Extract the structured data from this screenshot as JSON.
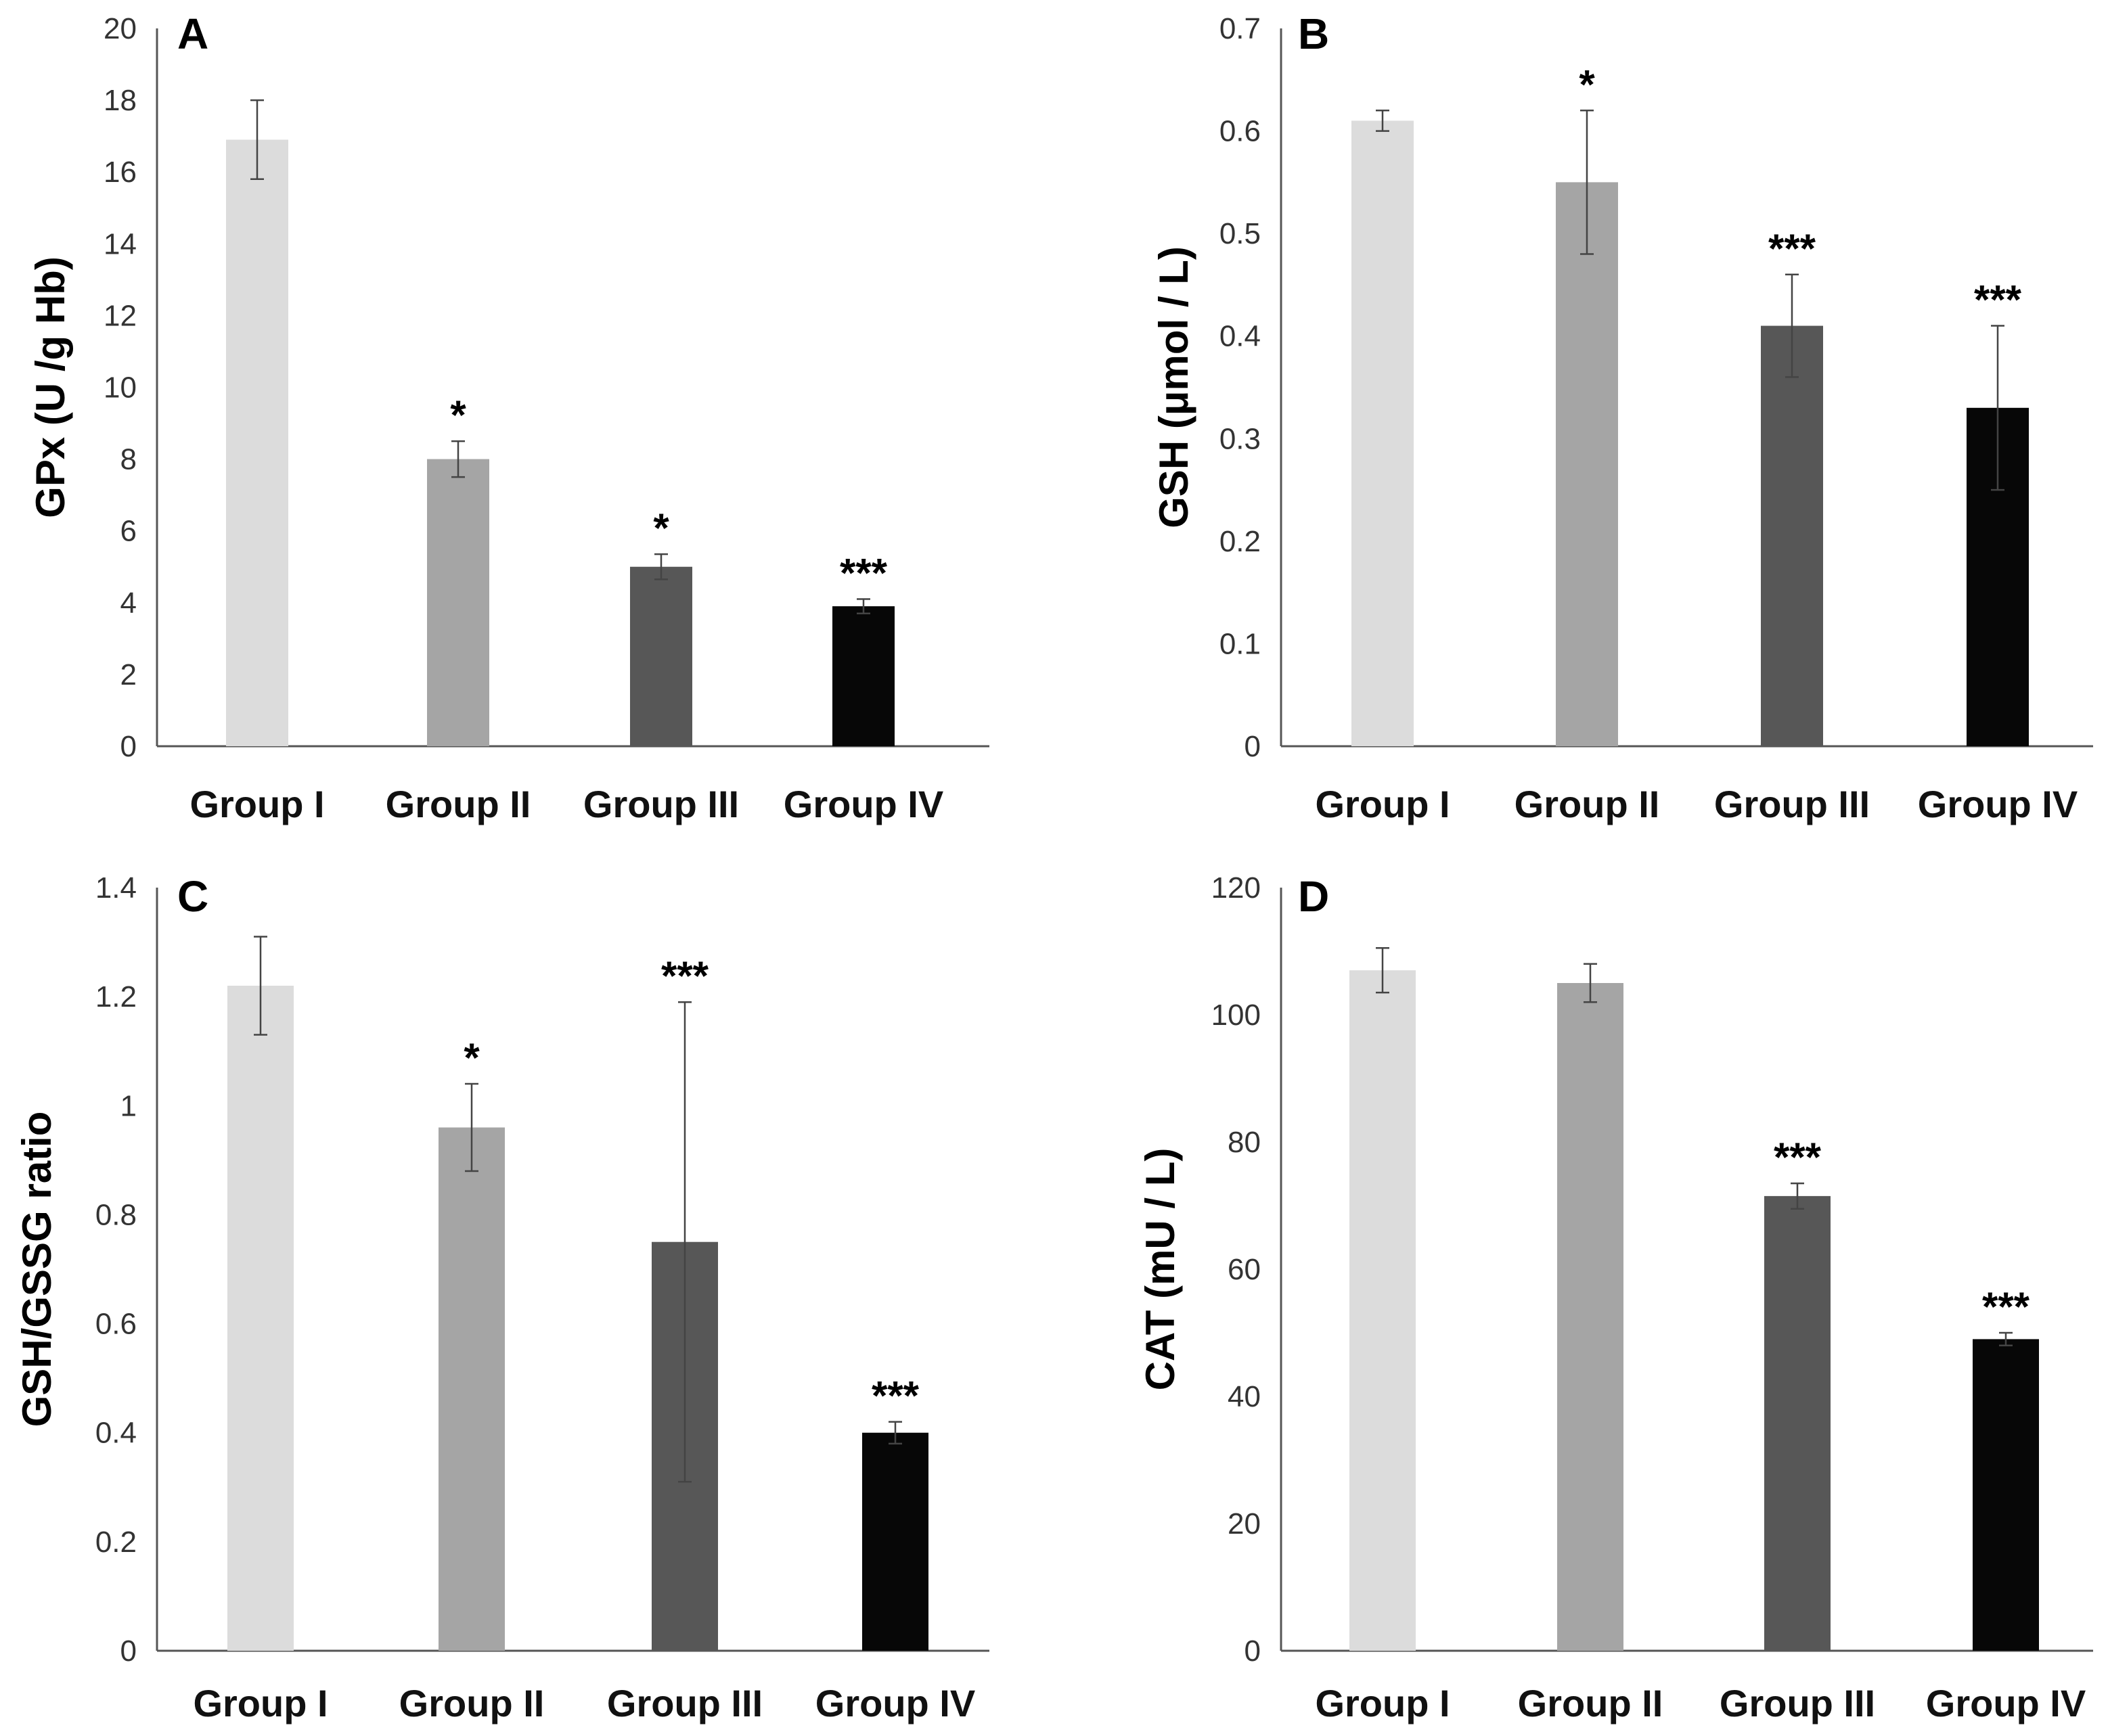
{
  "chart_data": [
    {
      "type": "bar",
      "panel": "A",
      "ylabel": "GPx  (U /g Hb)",
      "categories": [
        "Group I",
        "Group II",
        "Group III",
        "Group IV"
      ],
      "values": [
        16.9,
        8.0,
        5.0,
        3.9
      ],
      "errors": [
        1.1,
        0.5,
        0.35,
        0.2
      ],
      "significance": [
        "",
        "*",
        "*",
        "***"
      ],
      "ylim": [
        0,
        20
      ],
      "yticks": [
        "0",
        "2",
        "4",
        "6",
        "8",
        "10",
        "12",
        "14",
        "16",
        "18",
        "20"
      ],
      "colors": [
        "#dcdcdc",
        "#a5a5a5",
        "#575757",
        "#070707"
      ]
    },
    {
      "type": "bar",
      "panel": "B",
      "ylabel": "GSH (μmol / L)",
      "categories": [
        "Group I",
        "Group II",
        "Group III",
        "Group IV"
      ],
      "values": [
        0.61,
        0.55,
        0.41,
        0.33
      ],
      "errors": [
        0.01,
        0.07,
        0.05,
        0.08
      ],
      "significance": [
        "",
        "*",
        "***",
        "***"
      ],
      "ylim": [
        0,
        0.7
      ],
      "yticks": [
        "0",
        "0.1",
        "0.2",
        "0.3",
        "0.4",
        "0.5",
        "0.6",
        "0.7"
      ],
      "colors": [
        "#dcdcdc",
        "#a5a5a5",
        "#575757",
        "#070707"
      ]
    },
    {
      "type": "bar",
      "panel": "C",
      "ylabel": "GSH/GSSG ratio",
      "categories": [
        "Group I",
        "Group II",
        "Group III",
        "Group IV"
      ],
      "values": [
        1.22,
        0.96,
        0.75,
        0.4
      ],
      "errors": [
        0.09,
        0.08,
        0.44,
        0.02
      ],
      "significance": [
        "",
        "*",
        "***",
        "***"
      ],
      "ylim": [
        0,
        1.4
      ],
      "yticks": [
        "0",
        "0.2",
        "0.4",
        "0.6",
        "0.8",
        "1",
        "1.2",
        "1.4"
      ],
      "colors": [
        "#dcdcdc",
        "#a5a5a5",
        "#575757",
        "#070707"
      ]
    },
    {
      "type": "bar",
      "panel": "D",
      "ylabel": "CAT (mU / L)",
      "categories": [
        "Group I",
        "Group II",
        "Group III",
        "Group IV"
      ],
      "values": [
        107,
        105,
        71.5,
        49
      ],
      "errors": [
        3.5,
        3.0,
        2.0,
        1.0
      ],
      "significance": [
        "",
        "",
        "***",
        "***"
      ],
      "ylim": [
        0,
        120
      ],
      "yticks": [
        "0",
        "20",
        "40",
        "60",
        "80",
        "100",
        "120"
      ],
      "colors": [
        "#dcdcdc",
        "#a5a5a5",
        "#575757",
        "#070707"
      ]
    }
  ]
}
